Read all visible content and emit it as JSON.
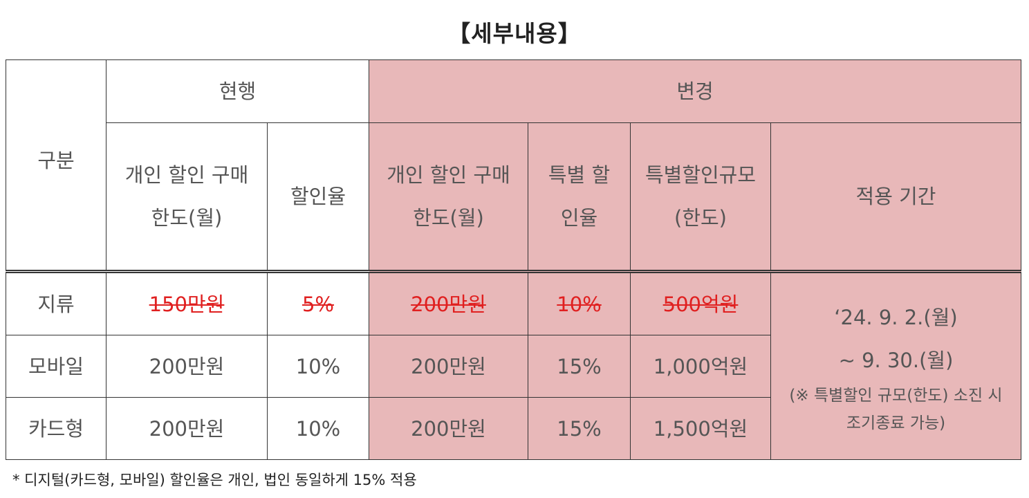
{
  "title": "【세부내용】",
  "headers": {
    "category": "구분",
    "current": "현행",
    "changed": "변경",
    "current_limit": "개인 할인 구매한도(월)",
    "current_rate": "할인율",
    "new_limit": "개인 할인 구매한도(월)",
    "special_rate": "특별 할인율",
    "special_scale": "특별할인규모(한도)",
    "period": "적용 기간"
  },
  "rows": [
    {
      "category": "지류",
      "current_limit": "150만원",
      "current_rate": "5%",
      "new_limit": "200만원",
      "special_rate": "10%",
      "special_scale": "500억원"
    },
    {
      "category": "모바일",
      "current_limit": "200만원",
      "current_rate": "10%",
      "new_limit": "200만원",
      "special_rate": "15%",
      "special_scale": "1,000억원"
    },
    {
      "category": "카드형",
      "current_limit": "200만원",
      "current_rate": "10%",
      "new_limit": "200만원",
      "special_rate": "15%",
      "special_scale": "1,500억원"
    }
  ],
  "period": {
    "line1": "‘24. 9. 2.(월)",
    "line2": "~ 9. 30.(월)",
    "note": "(※ 특별할인 규모(한도) 소진 시 조기종료 가능)"
  },
  "footnote": "* 디지털(카드형, 모바일) 할인율은 개인, 법인 동일하게 15% 적용",
  "colors": {
    "pink": "#e8b8b9",
    "strike": "#e02020"
  }
}
